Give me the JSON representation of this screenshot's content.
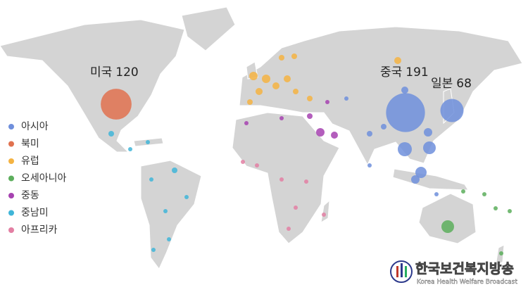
{
  "callouts": [
    {
      "name": "미국",
      "value": 120,
      "color": "#e0714f"
    },
    {
      "name": "중국",
      "value": 191,
      "color": "#6f8fdc"
    },
    {
      "name": "일본",
      "value": 68,
      "color": "#6f8fdc"
    }
  ],
  "legend": [
    {
      "name": "아시아",
      "color": "#6f8fdc"
    },
    {
      "name": "북미",
      "color": "#e0714f"
    },
    {
      "name": "유럽",
      "color": "#f4b342"
    },
    {
      "name": "오세아니아",
      "color": "#5cae5c"
    },
    {
      "name": "중동",
      "color": "#a642b0"
    },
    {
      "name": "중남미",
      "color": "#3fb5d8"
    },
    {
      "name": "아프리카",
      "color": "#e37fa3"
    }
  ],
  "watermark": {
    "title": "한국보건복지방송",
    "subtitle": "Korea Health Welfare Broadcast"
  }
}
